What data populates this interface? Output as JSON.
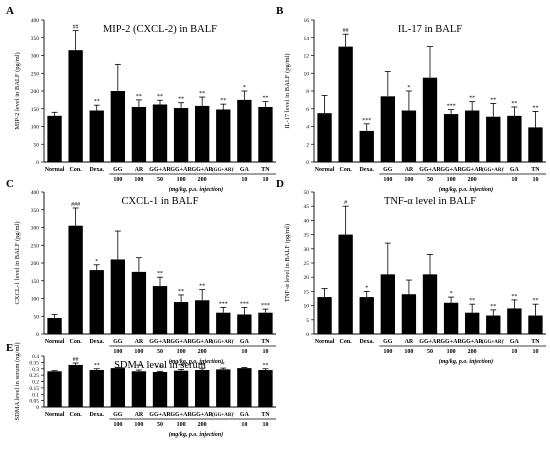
{
  "chart_data": [
    {
      "type": "bar",
      "panel": "A",
      "title": "MIP-2 (CXCL-2) in BALF",
      "ylabel": "MIP-2 level in BALF (pg/ml)",
      "ylim": [
        0,
        400
      ],
      "yticks": [
        0,
        50,
        100,
        150,
        200,
        250,
        300,
        350,
        400
      ],
      "categories": [
        "Normal",
        "Con.",
        "Dexa.",
        "GG",
        "AR",
        "GG+AR",
        "GG+AR",
        "GG+AR",
        "(GG+AR)'",
        "GA",
        "TN"
      ],
      "dose_labels": [
        "",
        "",
        "",
        "100",
        "100",
        "50",
        "100",
        "200",
        "",
        "10",
        "10"
      ],
      "values": [
        130,
        315,
        145,
        200,
        155,
        162,
        152,
        158,
        148,
        175,
        155
      ],
      "errors": [
        10,
        55,
        15,
        75,
        20,
        12,
        15,
        25,
        15,
        25,
        15
      ],
      "significance": [
        "",
        "##",
        "**",
        "",
        "**",
        "**",
        "**",
        "**",
        "**",
        "*",
        "**"
      ],
      "xlabel": "(mg/kg, p.o. injection)"
    },
    {
      "type": "bar",
      "panel": "B",
      "title": "IL-17 in BALF",
      "ylabel": "IL-17 level in BALF (pg/ml)",
      "ylim": [
        0,
        16
      ],
      "yticks": [
        0,
        2,
        4,
        6,
        8,
        10,
        12,
        14,
        16
      ],
      "categories": [
        "Normal",
        "Con.",
        "Dexa.",
        "GG",
        "AR",
        "GG+AR",
        "GG+AR",
        "GG+AR",
        "(GG+AR)'",
        "GA",
        "TN"
      ],
      "dose_labels": [
        "",
        "",
        "",
        "100",
        "100",
        "50",
        "100",
        "200",
        "",
        "10",
        "10"
      ],
      "values": [
        5.5,
        13.0,
        3.5,
        7.4,
        5.8,
        9.5,
        5.4,
        5.8,
        5.1,
        5.2,
        3.9
      ],
      "errors": [
        2.0,
        1.4,
        0.8,
        2.8,
        2.2,
        3.5,
        0.5,
        1.0,
        1.5,
        1.0,
        1.8
      ],
      "significance": [
        "",
        "##",
        "***",
        "",
        "*",
        "",
        "***",
        "**",
        "**",
        "**",
        "**"
      ],
      "xlabel": "(mg/kg, p.o. injection)"
    },
    {
      "type": "bar",
      "panel": "C",
      "title": "CXCL-1 in BALF",
      "ylabel": "CXCL-1 level in BALF (pg/ml)",
      "ylim": [
        0,
        400
      ],
      "yticks": [
        0,
        50,
        100,
        150,
        200,
        250,
        300,
        350,
        400
      ],
      "categories": [
        "Normal",
        "Con.",
        "Dexa.",
        "GG",
        "AR",
        "GG+AR",
        "GG+AR",
        "GG+AR",
        "(GG+AR)'",
        "GA",
        "TN"
      ],
      "dose_labels": [
        "",
        "",
        "",
        "100",
        "100",
        "50",
        "100",
        "200",
        "",
        "10",
        "10"
      ],
      "values": [
        45,
        305,
        180,
        210,
        175,
        135,
        90,
        95,
        60,
        55,
        60
      ],
      "errors": [
        10,
        50,
        15,
        80,
        40,
        25,
        20,
        30,
        15,
        20,
        10
      ],
      "significance": [
        "",
        "###",
        "*",
        "",
        "",
        "**",
        "**",
        "**",
        "***",
        "***",
        "***"
      ],
      "xlabel": "(mg/kg, p.o. injection)"
    },
    {
      "type": "bar",
      "panel": "D",
      "title": "TNF-α level in BALF",
      "ylabel": "TNF-α level in BALF (pg/ml)",
      "ylim": [
        0,
        50
      ],
      "yticks": [
        0,
        5,
        10,
        15,
        20,
        25,
        30,
        35,
        40,
        45,
        50
      ],
      "categories": [
        "Normal",
        "Con.",
        "Dexa.",
        "GG",
        "AR",
        "GG+AR",
        "GG+AR",
        "GG+AR",
        "(GG+AR)'",
        "GA",
        "TN"
      ],
      "dose_labels": [
        "",
        "",
        "",
        "100",
        "100",
        "50",
        "100",
        "200",
        "",
        "10",
        "10"
      ],
      "values": [
        13,
        35,
        13,
        21,
        14,
        21,
        11,
        7.5,
        6.5,
        9,
        6.5
      ],
      "errors": [
        3,
        10,
        2,
        11,
        5,
        7,
        2,
        3,
        2,
        3,
        4
      ],
      "significance": [
        "",
        "#",
        "*",
        "",
        "",
        "",
        "*",
        "**",
        "**",
        "**",
        "**"
      ],
      "xlabel": "(mg/kg, p.o. injection)"
    },
    {
      "type": "bar",
      "panel": "E",
      "title": "SDMA level in serum",
      "ylabel": "SDMA level in serum (ng/ml)",
      "ylim": [
        0,
        0.4
      ],
      "yticks": [
        "0",
        "0.05",
        "0.1",
        "0.15",
        "0.2",
        "0.25",
        "0.3",
        "0.35",
        "0.4"
      ],
      "categories": [
        "Normal",
        "Con.",
        "Dexa.",
        "GG",
        "AR",
        "GG+AR",
        "GG+AR",
        "GG+AR",
        "(GG+AR)'",
        "GA",
        "TN"
      ],
      "dose_labels": [
        "",
        "",
        "",
        "100",
        "100",
        "50",
        "100",
        "200",
        "",
        "10",
        "10"
      ],
      "values": [
        0.28,
        0.33,
        0.29,
        0.305,
        0.28,
        0.275,
        0.285,
        0.29,
        0.295,
        0.305,
        0.29
      ],
      "errors": [
        0.005,
        0.015,
        0.01,
        0.005,
        0.01,
        0.005,
        0.01,
        0.01,
        0.01,
        0.005,
        0.01
      ],
      "significance": [
        "",
        "##",
        "**",
        "",
        "**",
        "***",
        "**",
        "**",
        "*",
        "",
        "**"
      ],
      "xlabel": "(mg/kg, p.o. injection)"
    }
  ]
}
